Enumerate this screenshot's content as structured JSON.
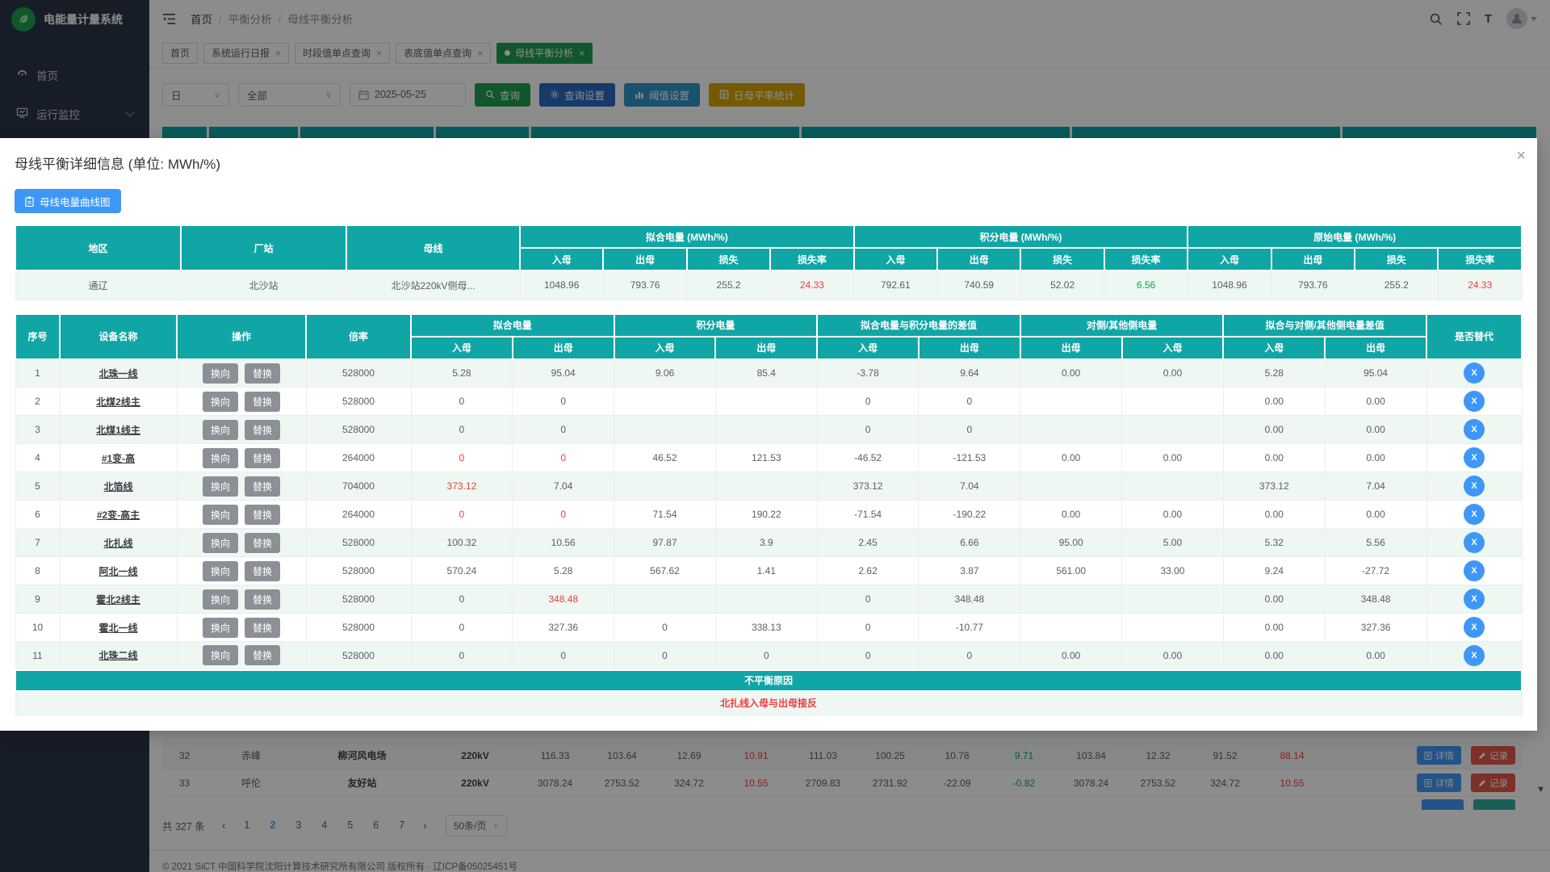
{
  "app_title": "电能量计量系统",
  "sidebar": {
    "items": [
      {
        "label": "首页",
        "icon": "dashboard-icon"
      },
      {
        "label": "运行监控",
        "icon": "monitor-icon",
        "expandable": true
      }
    ]
  },
  "topbar": {
    "breadcrumb": [
      "首页",
      "平衡分析",
      "母线平衡分析"
    ],
    "icons": [
      "search-icon",
      "fullscreen-icon",
      "font-size-icon",
      "user-avatar"
    ]
  },
  "tabs": [
    {
      "label": "首页",
      "closable": false,
      "active": false
    },
    {
      "label": "系统运行日报",
      "closable": true,
      "active": false
    },
    {
      "label": "时段值单点查询",
      "closable": true,
      "active": false
    },
    {
      "label": "表底值单点查询",
      "closable": true,
      "active": false
    },
    {
      "label": "母线平衡分析",
      "closable": true,
      "active": true
    }
  ],
  "filter_bar": {
    "period_select": "日",
    "scope_select": "全部",
    "date_value": "2025-05-25",
    "query_button": "查询",
    "query_settings_button": "查询设置",
    "threshold_button": "阈值设置",
    "daily_rate_button": "日母平率统计"
  },
  "icons_glyphs": {
    "close": "×",
    "tab_close": "×",
    "chevron_down": "∨",
    "prev": "‹",
    "next": "›",
    "scroll_down": "▼",
    "substitute_x": "X"
  },
  "modal": {
    "title": "母线平衡详细信息 (单位: MWh/%)",
    "curve_button": "母线电量曲线图",
    "summary_table": {
      "fixed_headers": [
        "地区",
        "厂站",
        "母线"
      ],
      "groups": [
        "拟合电量 (MWh/%)",
        "积分电量 (MWh/%)",
        "原始电量 (MWh/%)"
      ],
      "sub_headers": [
        "入母",
        "出母",
        "损失",
        "损失率"
      ],
      "row": {
        "region": "通辽",
        "station": "北沙站",
        "bus": "北沙站220kV侧母...",
        "values": [
          "1048.96",
          "793.76",
          "255.2",
          "24.33",
          "792.61",
          "740.59",
          "52.02",
          "6.56",
          "1048.96",
          "793.76",
          "255.2",
          "24.33"
        ],
        "value_colors": [
          "",
          "",
          "",
          "red",
          "",
          "",
          "",
          "green",
          "",
          "",
          "",
          "red"
        ]
      }
    },
    "detail_table": {
      "fixed_headers": [
        "序号",
        "设备名称",
        "操作",
        "倍率"
      ],
      "groups": [
        "拟合电量",
        "积分电量",
        "拟合电量与积分电量的差值",
        "对侧/其他侧电量",
        "拟合与对侧/其他侧电量差值"
      ],
      "group_subs": [
        [
          "入母",
          "出母"
        ],
        [
          "入母",
          "出母"
        ],
        [
          "入母",
          "出母"
        ],
        [
          "出母",
          "入母"
        ],
        [
          "入母",
          "出母"
        ]
      ],
      "last_header": "是否替代",
      "action_buttons": [
        "换向",
        "替换"
      ],
      "rows": [
        {
          "no": "1",
          "device": "北珠一线",
          "ratio": "528000",
          "values": [
            "5.28",
            "95.04",
            "9.06",
            "85.4",
            "-3.78",
            "9.64",
            "0.00",
            "0.00",
            "5.28",
            "95.04"
          ],
          "colors": [
            "",
            "",
            "",
            "",
            "",
            "",
            "",
            "",
            "",
            ""
          ]
        },
        {
          "no": "2",
          "device": "北煤2线主",
          "ratio": "528000",
          "values": [
            "0",
            "0",
            "",
            "",
            "0",
            "0",
            "",
            "",
            "0.00",
            "0.00"
          ],
          "colors": [
            "",
            "",
            "",
            "",
            "",
            "",
            "",
            "",
            "",
            ""
          ]
        },
        {
          "no": "3",
          "device": "北煤1线主",
          "ratio": "528000",
          "values": [
            "0",
            "0",
            "",
            "",
            "0",
            "0",
            "",
            "",
            "0.00",
            "0.00"
          ],
          "colors": [
            "",
            "",
            "",
            "",
            "",
            "",
            "",
            "",
            "",
            ""
          ]
        },
        {
          "no": "4",
          "device": "#1变-高",
          "ratio": "264000",
          "values": [
            "0",
            "0",
            "46.52",
            "121.53",
            "-46.52",
            "-121.53",
            "0.00",
            "0.00",
            "0.00",
            "0.00"
          ],
          "colors": [
            "red",
            "red",
            "",
            "",
            "",
            "",
            "",
            "",
            "",
            ""
          ]
        },
        {
          "no": "5",
          "device": "北箔线",
          "ratio": "704000",
          "values": [
            "373.12",
            "7.04",
            "",
            "",
            "373.12",
            "7.04",
            "",
            "",
            "373.12",
            "7.04"
          ],
          "colors": [
            "red",
            "",
            "",
            "",
            "",
            "",
            "",
            "",
            "",
            ""
          ]
        },
        {
          "no": "6",
          "device": "#2变-高主",
          "ratio": "264000",
          "values": [
            "0",
            "0",
            "71.54",
            "190.22",
            "-71.54",
            "-190.22",
            "0.00",
            "0.00",
            "0.00",
            "0.00"
          ],
          "colors": [
            "red",
            "red",
            "",
            "",
            "",
            "",
            "",
            "",
            "",
            ""
          ]
        },
        {
          "no": "7",
          "device": "北扎线",
          "ratio": "528000",
          "values": [
            "100.32",
            "10.56",
            "97.87",
            "3.9",
            "2.45",
            "6.66",
            "95.00",
            "5.00",
            "5.32",
            "5.56"
          ],
          "colors": [
            "",
            "",
            "",
            "",
            "",
            "",
            "",
            "",
            "",
            ""
          ]
        },
        {
          "no": "8",
          "device": "阿北一线",
          "ratio": "528000",
          "values": [
            "570.24",
            "5.28",
            "567.62",
            "1.41",
            "2.62",
            "3.87",
            "561.00",
            "33.00",
            "9.24",
            "-27.72"
          ],
          "colors": [
            "",
            "",
            "",
            "",
            "",
            "",
            "",
            "",
            "",
            ""
          ]
        },
        {
          "no": "9",
          "device": "霍北2线主",
          "ratio": "528000",
          "values": [
            "0",
            "348.48",
            "",
            "",
            "0",
            "348.48",
            "",
            "",
            "0.00",
            "348.48"
          ],
          "colors": [
            "",
            "red",
            "",
            "",
            "",
            "",
            "",
            "",
            "",
            ""
          ]
        },
        {
          "no": "10",
          "device": "霍北一线",
          "ratio": "528000",
          "values": [
            "0",
            "327.36",
            "0",
            "338.13",
            "0",
            "-10.77",
            "",
            "",
            "0.00",
            "327.36"
          ],
          "colors": [
            "",
            "",
            "",
            "",
            "",
            "",
            "",
            "",
            "",
            ""
          ]
        },
        {
          "no": "11",
          "device": "北珠二线",
          "ratio": "528000",
          "values": [
            "0",
            "0",
            "0",
            "0",
            "0",
            "0",
            "0.00",
            "0.00",
            "0.00",
            "0.00"
          ],
          "colors": [
            "",
            "",
            "",
            "",
            "",
            "",
            "",
            "",
            "",
            ""
          ]
        }
      ]
    },
    "imbalance_header": "不平衡原因",
    "imbalance_reason": "北扎线入母与出母接反"
  },
  "background_table": {
    "rows": [
      {
        "no": "32",
        "region": "赤峰",
        "station": "柳河风电场",
        "voltage": "220kV",
        "values": [
          "116.33",
          "103.64",
          "12.69",
          "10.91",
          "111.03",
          "100.25",
          "10.78",
          "9.71",
          "103.84",
          "12.32",
          "91.52",
          "88.14"
        ],
        "colors": [
          "",
          "",
          "",
          "red",
          "",
          "",
          "",
          "green",
          "",
          "",
          "",
          "red"
        ],
        "detail_button": "详情",
        "record_button": "记录"
      },
      {
        "no": "33",
        "region": "呼伦",
        "station": "友好站",
        "voltage": "220kV",
        "values": [
          "3078.24",
          "2753.52",
          "324.72",
          "10.55",
          "2709.83",
          "2731.92",
          "-22.09",
          "-0.82",
          "3078.24",
          "2753.52",
          "324.72",
          "10.55"
        ],
        "colors": [
          "",
          "",
          "",
          "red",
          "",
          "",
          "",
          "green",
          "",
          "",
          "",
          "red"
        ],
        "detail_button": "详情",
        "record_button": "记录"
      }
    ]
  },
  "pagination": {
    "total": "共 327 条",
    "pages": [
      "1",
      "2",
      "3",
      "4",
      "5",
      "6",
      "7"
    ],
    "current": "2",
    "page_size": "50条/页"
  },
  "footer": "© 2021 SiCT 中国科学院沈阳计算技术研究所有限公司 版权所有 · 辽ICP备05025451号"
}
